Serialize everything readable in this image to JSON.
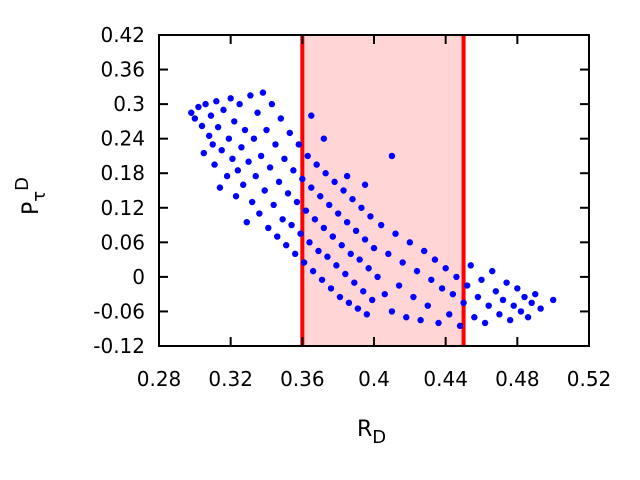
{
  "chart_data": {
    "type": "scatter",
    "xlabel": "R",
    "xlabel_sub": "D",
    "ylabel": "P",
    "ylabel_sub": "τ",
    "ylabel_sup": "D",
    "xlim": [
      0.28,
      0.52
    ],
    "ylim": [
      -0.12,
      0.42
    ],
    "xticks": [
      "0.28",
      "0.32",
      "0.36",
      "0.4",
      "0.44",
      "0.48",
      "0.52"
    ],
    "yticks": [
      "0.42",
      "0.36",
      "0.3",
      "0.24",
      "0.18",
      "0.12",
      "0.06",
      "0",
      "-0.06",
      "-0.12"
    ],
    "grid": false,
    "series": [
      {
        "color": "#0000ff",
        "marker": "dot",
        "values": [
          [
            0.298,
            0.285
          ],
          [
            0.3,
            0.275
          ],
          [
            0.302,
            0.295
          ],
          [
            0.304,
            0.262
          ],
          [
            0.305,
            0.215
          ],
          [
            0.306,
            0.3
          ],
          [
            0.308,
            0.245
          ],
          [
            0.309,
            0.28
          ],
          [
            0.31,
            0.23
          ],
          [
            0.311,
            0.195
          ],
          [
            0.312,
            0.305
          ],
          [
            0.313,
            0.26
          ],
          [
            0.314,
            0.155
          ],
          [
            0.315,
            0.22
          ],
          [
            0.316,
            0.29
          ],
          [
            0.318,
            0.175
          ],
          [
            0.319,
            0.24
          ],
          [
            0.32,
            0.31
          ],
          [
            0.321,
            0.205
          ],
          [
            0.322,
            0.27
          ],
          [
            0.323,
            0.14
          ],
          [
            0.324,
            0.185
          ],
          [
            0.325,
            0.3
          ],
          [
            0.326,
            0.225
          ],
          [
            0.327,
            0.16
          ],
          [
            0.328,
            0.255
          ],
          [
            0.329,
            0.095
          ],
          [
            0.33,
            0.2
          ],
          [
            0.331,
            0.315
          ],
          [
            0.332,
            0.13
          ],
          [
            0.333,
            0.24
          ],
          [
            0.334,
            0.175
          ],
          [
            0.335,
            0.285
          ],
          [
            0.336,
            0.11
          ],
          [
            0.337,
            0.21
          ],
          [
            0.338,
            0.32
          ],
          [
            0.339,
            0.15
          ],
          [
            0.34,
            0.255
          ],
          [
            0.341,
            0.085
          ],
          [
            0.342,
            0.19
          ],
          [
            0.343,
            0.3
          ],
          [
            0.344,
            0.125
          ],
          [
            0.345,
            0.23
          ],
          [
            0.346,
            0.07
          ],
          [
            0.347,
            0.165
          ],
          [
            0.348,
            0.275
          ],
          [
            0.349,
            0.1
          ],
          [
            0.35,
            0.205
          ],
          [
            0.351,
            0.055
          ],
          [
            0.352,
            0.145
          ],
          [
            0.353,
            0.25
          ],
          [
            0.354,
            0.09
          ],
          [
            0.355,
            0.185
          ],
          [
            0.356,
            0.04
          ],
          [
            0.357,
            0.13
          ],
          [
            0.358,
            0.23
          ],
          [
            0.359,
            0.075
          ],
          [
            0.36,
            0.17
          ],
          [
            0.361,
            0.025
          ],
          [
            0.362,
            0.115
          ],
          [
            0.363,
            0.21
          ],
          [
            0.364,
            0.06
          ],
          [
            0.365,
            0.155
          ],
          [
            0.366,
            0.01
          ],
          [
            0.367,
            0.1
          ],
          [
            0.368,
            0.195
          ],
          [
            0.369,
            0.045
          ],
          [
            0.37,
            0.14
          ],
          [
            0.371,
            -0.005
          ],
          [
            0.372,
            0.085
          ],
          [
            0.373,
            0.18
          ],
          [
            0.374,
            0.035
          ],
          [
            0.375,
            0.125
          ],
          [
            0.376,
            -0.02
          ],
          [
            0.377,
            0.07
          ],
          [
            0.378,
            0.165
          ],
          [
            0.379,
            0.02
          ],
          [
            0.38,
            0.11
          ],
          [
            0.381,
            -0.035
          ],
          [
            0.382,
            0.055
          ],
          [
            0.383,
            0.15
          ],
          [
            0.384,
            0.005
          ],
          [
            0.385,
            0.095
          ],
          [
            0.386,
            -0.045
          ],
          [
            0.387,
            0.04
          ],
          [
            0.388,
            0.135
          ],
          [
            0.389,
            -0.01
          ],
          [
            0.39,
            0.08
          ],
          [
            0.391,
            -0.055
          ],
          [
            0.392,
            0.03
          ],
          [
            0.393,
            0.12
          ],
          [
            0.394,
            -0.025
          ],
          [
            0.395,
            0.065
          ],
          [
            0.396,
            -0.065
          ],
          [
            0.397,
            0.015
          ],
          [
            0.398,
            0.105
          ],
          [
            0.399,
            -0.04
          ],
          [
            0.4,
            0.05
          ],
          [
            0.402,
            0.0
          ],
          [
            0.404,
            0.09
          ],
          [
            0.406,
            -0.03
          ],
          [
            0.408,
            0.04
          ],
          [
            0.41,
            -0.06
          ],
          [
            0.412,
            0.075
          ],
          [
            0.414,
            -0.015
          ],
          [
            0.416,
            0.025
          ],
          [
            0.418,
            -0.07
          ],
          [
            0.42,
            0.06
          ],
          [
            0.422,
            -0.035
          ],
          [
            0.424,
            0.01
          ],
          [
            0.426,
            -0.075
          ],
          [
            0.428,
            0.045
          ],
          [
            0.43,
            -0.05
          ],
          [
            0.432,
            -0.005
          ],
          [
            0.434,
            0.03
          ],
          [
            0.436,
            -0.08
          ],
          [
            0.438,
            -0.02
          ],
          [
            0.44,
            0.015
          ],
          [
            0.442,
            -0.065
          ],
          [
            0.444,
            -0.03
          ],
          [
            0.446,
            0.0
          ],
          [
            0.448,
            -0.085
          ],
          [
            0.45,
            -0.045
          ],
          [
            0.452,
            -0.015
          ],
          [
            0.454,
            0.02
          ],
          [
            0.456,
            -0.07
          ],
          [
            0.458,
            -0.035
          ],
          [
            0.46,
            -0.005
          ],
          [
            0.462,
            -0.08
          ],
          [
            0.464,
            -0.05
          ],
          [
            0.466,
            0.01
          ],
          [
            0.468,
            -0.025
          ],
          [
            0.47,
            -0.065
          ],
          [
            0.472,
            -0.04
          ],
          [
            0.474,
            -0.01
          ],
          [
            0.476,
            -0.075
          ],
          [
            0.478,
            -0.05
          ],
          [
            0.48,
            -0.02
          ],
          [
            0.482,
            -0.06
          ],
          [
            0.484,
            -0.035
          ],
          [
            0.486,
            -0.07
          ],
          [
            0.488,
            -0.045
          ],
          [
            0.49,
            -0.03
          ],
          [
            0.493,
            -0.055
          ],
          [
            0.5,
            -0.04
          ],
          [
            0.41,
            0.21
          ],
          [
            0.395,
            0.16
          ],
          [
            0.385,
            0.175
          ],
          [
            0.372,
            0.24
          ],
          [
            0.365,
            0.28
          ]
        ]
      }
    ],
    "highlight_band": {
      "x_range": [
        0.36,
        0.45
      ],
      "fill": "#ffd5d5",
      "edge": "#ff0000"
    }
  }
}
